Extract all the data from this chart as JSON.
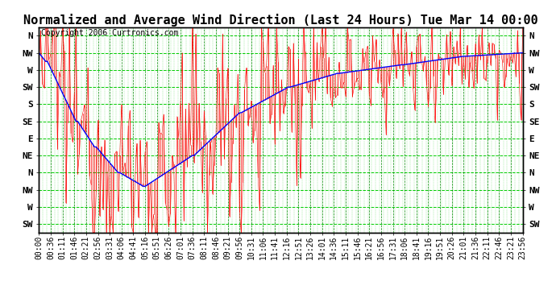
{
  "title": "Normalized and Average Wind Direction (Last 24 Hours) Tue Mar 14 00:00",
  "copyright": "Copyright 2006 Curtronics.com",
  "bg_color": "#FFFFFF",
  "figure_bg": "#FFFFFF",
  "ytick_labels_left": [
    "N",
    "NW",
    "W",
    "SW",
    "S",
    "SE",
    "E",
    "NE",
    "N",
    "NW",
    "W",
    "SW"
  ],
  "ytick_labels_right": [
    "N",
    "NW",
    "W",
    "SW",
    "S",
    "SE",
    "E",
    "NE",
    "N",
    "NW",
    "W",
    "SW"
  ],
  "ytick_values": [
    12,
    11,
    10,
    9,
    8,
    7,
    6,
    5,
    4,
    3,
    2,
    1
  ],
  "ymin": 0.5,
  "ymax": 12.5,
  "num_points": 288,
  "time_labels": [
    "00:00",
    "00:36",
    "01:11",
    "01:46",
    "02:21",
    "02:56",
    "03:31",
    "04:06",
    "04:41",
    "05:16",
    "05:51",
    "06:26",
    "07:01",
    "07:36",
    "08:11",
    "08:46",
    "09:21",
    "09:56",
    "10:31",
    "11:06",
    "11:41",
    "12:16",
    "12:51",
    "13:26",
    "14:01",
    "14:36",
    "15:11",
    "15:46",
    "16:21",
    "16:56",
    "17:31",
    "18:06",
    "18:41",
    "19:16",
    "19:51",
    "20:26",
    "21:01",
    "21:36",
    "22:11",
    "22:46",
    "23:21",
    "23:56"
  ],
  "red_line_color": "#FF0000",
  "blue_line_color": "#0000FF",
  "grid_h_color": "#00CC00",
  "grid_v_color": "#008800",
  "title_fontsize": 11,
  "copyright_fontsize": 7,
  "tick_fontsize": 7,
  "ylabel_fontsize": 8
}
